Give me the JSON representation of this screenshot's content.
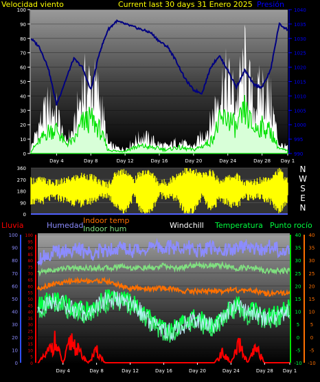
{
  "header": {
    "left_label": "Velocidad viento",
    "center_label": "Current last 30 days 31 Enero 2025",
    "right_label": "Presión"
  },
  "colors": {
    "background": "#000000",
    "wind_speed": "#ffffff",
    "wind_avg": "#00e000",
    "pressure": "#000080",
    "direction": "#ffff00",
    "humidity": "#8c8cff",
    "indoor_temp": "#ff7000",
    "indoor_hum": "#80e080",
    "windchill": "#ffffff",
    "temperature": "#00ff40",
    "dewpoint": "#00ff40",
    "rain": "#ff0000",
    "header_yellow": "#ffff00",
    "axis_blue": "#0000ff"
  },
  "chart_data": [
    {
      "type": "area",
      "name": "wind-pressure",
      "x_tick_labels": [
        "Day 4",
        "Day 8",
        "Day 12",
        "Day 16",
        "Day 20",
        "Day 24",
        "Day 28",
        "Day 1"
      ],
      "left_axis": {
        "ticks": [
          "0",
          "10",
          "20",
          "30",
          "40",
          "50",
          "60",
          "70",
          "80",
          "90",
          "100"
        ],
        "ylim": [
          0,
          100
        ]
      },
      "right_axis": {
        "ticks": [
          "990",
          "995",
          "1000",
          "1005",
          "1010",
          "1015",
          "1020",
          "1025",
          "1030",
          "1035",
          "1040"
        ],
        "ylim": [
          990,
          1040
        ]
      },
      "days": [
        1,
        2,
        3,
        4,
        5,
        6,
        7,
        8,
        9,
        10,
        11,
        12,
        13,
        14,
        15,
        16,
        17,
        18,
        19,
        20,
        21,
        22,
        23,
        24,
        25,
        26,
        27,
        28,
        29,
        30,
        31
      ],
      "series": [
        {
          "name": "Velocidad viento",
          "key": "gust",
          "values": [
            5,
            25,
            40,
            35,
            10,
            20,
            55,
            60,
            50,
            8,
            5,
            4,
            10,
            15,
            12,
            8,
            6,
            10,
            8,
            6,
            15,
            25,
            55,
            60,
            45,
            75,
            40,
            55,
            45,
            8,
            5
          ]
        },
        {
          "name": "wind average",
          "key": "avg",
          "values": [
            2,
            10,
            18,
            20,
            8,
            10,
            25,
            28,
            20,
            3,
            2,
            2,
            5,
            6,
            5,
            4,
            3,
            5,
            4,
            3,
            6,
            10,
            25,
            30,
            20,
            35,
            20,
            22,
            18,
            4,
            2
          ]
        },
        {
          "name": "Presión",
          "key": "pressure",
          "values": [
            1030,
            1027,
            1020,
            1007,
            1015,
            1023,
            1020,
            1012,
            1025,
            1033,
            1036,
            1035,
            1034,
            1033,
            1032,
            1029,
            1027,
            1022,
            1016,
            1012,
            1011,
            1020,
            1024,
            1019,
            1013,
            1019,
            1014,
            1013,
            1019,
            1035,
            1033
          ]
        }
      ]
    },
    {
      "type": "area",
      "name": "wind-direction",
      "left_axis": {
        "ticks": [
          "0",
          "90",
          "180",
          "270",
          "360"
        ],
        "ylim": [
          0,
          360
        ]
      },
      "compass_labels": [
        "N",
        "W",
        "S",
        "E",
        "N"
      ],
      "days": [
        1,
        2,
        3,
        4,
        5,
        6,
        7,
        8,
        9,
        10,
        11,
        12,
        13,
        14,
        15,
        16,
        17,
        18,
        19,
        20,
        21,
        22,
        23,
        24,
        25,
        26,
        27,
        28,
        29,
        30,
        31
      ],
      "series": [
        {
          "name": "direction low",
          "key": "dir_low",
          "values": [
            100,
            90,
            120,
            130,
            110,
            90,
            80,
            100,
            130,
            150,
            60,
            20,
            140,
            10,
            20,
            150,
            140,
            120,
            10,
            20,
            140,
            20,
            120,
            90,
            60,
            130,
            140,
            130,
            100,
            20,
            120
          ]
        },
        {
          "name": "direction high",
          "key": "dir_high",
          "values": [
            260,
            270,
            250,
            240,
            260,
            280,
            300,
            290,
            250,
            230,
            320,
            340,
            260,
            330,
            320,
            240,
            250,
            300,
            340,
            330,
            300,
            330,
            260,
            280,
            300,
            240,
            250,
            270,
            290,
            340,
            260
          ]
        }
      ]
    },
    {
      "type": "line",
      "name": "temp-humidity-rain",
      "x_tick_labels": [
        "Day 4",
        "Day 8",
        "Day 12",
        "Day 16",
        "Day 20",
        "Day 24",
        "Day 28",
        "Day 1"
      ],
      "legend": [
        "Lluvia",
        "Humedad",
        "Indoor temp",
        "Indoor hum",
        "Windchill",
        "Temperatura",
        "Punto rocío"
      ],
      "humidity_axis": {
        "ticks": [
          "0",
          "10",
          "20",
          "30",
          "40",
          "50",
          "60",
          "70",
          "80",
          "90",
          "100"
        ],
        "ylim": [
          0,
          100
        ]
      },
      "rain_axis": {
        "ticks": [
          "0",
          "5",
          "10",
          "15",
          "20",
          "25",
          "30",
          "35",
          "40",
          "45",
          "50",
          "55",
          "60",
          "65",
          "70",
          "75",
          "80",
          "85",
          "90",
          "95",
          "100"
        ],
        "ylim": [
          0,
          100
        ]
      },
      "temp_axis": {
        "ticks": [
          "-10",
          "-5",
          "0",
          "5",
          "10",
          "15",
          "20",
          "25",
          "30",
          "35",
          "40"
        ],
        "ylim": [
          -10,
          40
        ]
      },
      "days": [
        1,
        2,
        3,
        4,
        5,
        6,
        7,
        8,
        9,
        10,
        11,
        12,
        13,
        14,
        15,
        16,
        17,
        18,
        19,
        20,
        21,
        22,
        23,
        24,
        25,
        26,
        27,
        28,
        29,
        30,
        31
      ],
      "series": [
        {
          "name": "Humedad",
          "key": "humidity",
          "axis": "temp",
          "values": [
            31,
            32,
            33,
            34,
            34,
            34,
            33,
            33,
            34,
            35,
            35,
            34,
            34,
            35,
            35,
            35,
            35,
            35,
            35,
            34,
            34,
            35,
            34,
            34,
            35,
            35,
            34,
            35,
            35,
            34,
            34
          ]
        },
        {
          "name": "Indoor hum",
          "key": "indoor_hum",
          "axis": "temp",
          "values": [
            25,
            26,
            26,
            27,
            27,
            27,
            27,
            27,
            27,
            27,
            28,
            27,
            27,
            27,
            27,
            28,
            27,
            27,
            28,
            28,
            28,
            28,
            28,
            27,
            27,
            27,
            27,
            26,
            26,
            26,
            26
          ]
        },
        {
          "name": "Indoor temp",
          "key": "indoor_temp",
          "axis": "temp",
          "values": [
            19,
            20,
            21,
            21,
            22,
            22,
            22,
            22,
            22,
            21,
            20,
            19,
            19,
            19,
            19,
            19,
            19,
            18,
            18,
            18,
            18,
            18,
            18,
            19,
            18,
            18,
            18,
            17,
            17,
            17,
            17
          ]
        },
        {
          "name": "Temperatura",
          "key": "temperature",
          "axis": "temp",
          "values": [
            12,
            14,
            15,
            14,
            12,
            11,
            10,
            13,
            15,
            16,
            15,
            14,
            12,
            8,
            6,
            4,
            3,
            5,
            7,
            8,
            6,
            5,
            9,
            12,
            13,
            10,
            11,
            8,
            9,
            10,
            12
          ]
        },
        {
          "name": "Punto rocío",
          "key": "dewpoint",
          "axis": "temp",
          "values": [
            10,
            12,
            13,
            12,
            10,
            9,
            8,
            11,
            13,
            14,
            13,
            12,
            10,
            6,
            4,
            2,
            1,
            3,
            5,
            6,
            4,
            3,
            7,
            10,
            11,
            8,
            9,
            6,
            7,
            8,
            10
          ]
        },
        {
          "name": "Windchill",
          "key": "windchill",
          "axis": "temp",
          "values": [
            11,
            13,
            14,
            13,
            11,
            10,
            9,
            12,
            14,
            15,
            14,
            13,
            11,
            7,
            5,
            3,
            2,
            4,
            6,
            7,
            5,
            4,
            8,
            11,
            12,
            9,
            10,
            7,
            8,
            9,
            11
          ]
        },
        {
          "name": "Lluvia",
          "key": "rain",
          "axis": "rain",
          "values": [
            0,
            8,
            22,
            0,
            24,
            10,
            0,
            12,
            0,
            0,
            0,
            0,
            0,
            0,
            0,
            0,
            0,
            0,
            0,
            0,
            0,
            0,
            10,
            0,
            18,
            0,
            15,
            0,
            0,
            0,
            0
          ]
        }
      ]
    }
  ]
}
